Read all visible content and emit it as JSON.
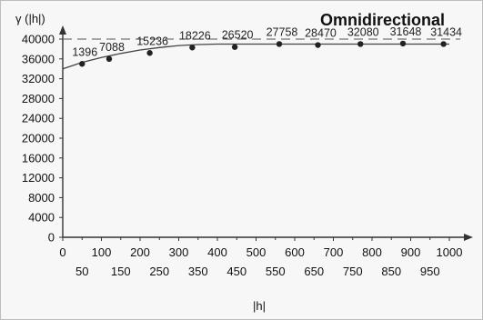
{
  "chart_data": {
    "type": "scatter",
    "title": "Omnidirectional",
    "xlabel": "|h|",
    "ylabel": "γ (|h|)",
    "xlim": [
      0,
      1000
    ],
    "ylim": [
      0,
      40000
    ],
    "xticks_top": [
      "0",
      "100",
      "200",
      "300",
      "400",
      "500",
      "600",
      "700",
      "800",
      "900",
      "1000"
    ],
    "xticks_bottom": [
      "50",
      "150",
      "250",
      "350",
      "450",
      "550",
      "650",
      "750",
      "850",
      "950"
    ],
    "yticks": [
      "0",
      "4000",
      "8000",
      "12000",
      "16000",
      "20000",
      "24000",
      "28000",
      "32000",
      "36000",
      "40000"
    ],
    "sill": 40000,
    "points": [
      {
        "x": 50,
        "y": 35000,
        "label": "1396"
      },
      {
        "x": 120,
        "y": 36000,
        "label": "7088"
      },
      {
        "x": 225,
        "y": 37200,
        "label": "15236"
      },
      {
        "x": 335,
        "y": 38300,
        "label": "18226"
      },
      {
        "x": 445,
        "y": 38400,
        "label": "26520"
      },
      {
        "x": 560,
        "y": 39000,
        "label": "27758"
      },
      {
        "x": 660,
        "y": 38800,
        "label": "28470"
      },
      {
        "x": 770,
        "y": 39000,
        "label": "32080"
      },
      {
        "x": 880,
        "y": 39100,
        "label": "31648"
      },
      {
        "x": 985,
        "y": 39000,
        "label": "31434"
      }
    ],
    "model_curve": {
      "x": [
        0,
        50,
        100,
        150,
        200,
        250,
        300,
        350,
        400,
        450,
        500,
        1000
      ],
      "y": [
        34000,
        35300,
        36300,
        37100,
        37800,
        38300,
        38700,
        38900,
        39000,
        39000,
        39000,
        39000
      ]
    }
  }
}
